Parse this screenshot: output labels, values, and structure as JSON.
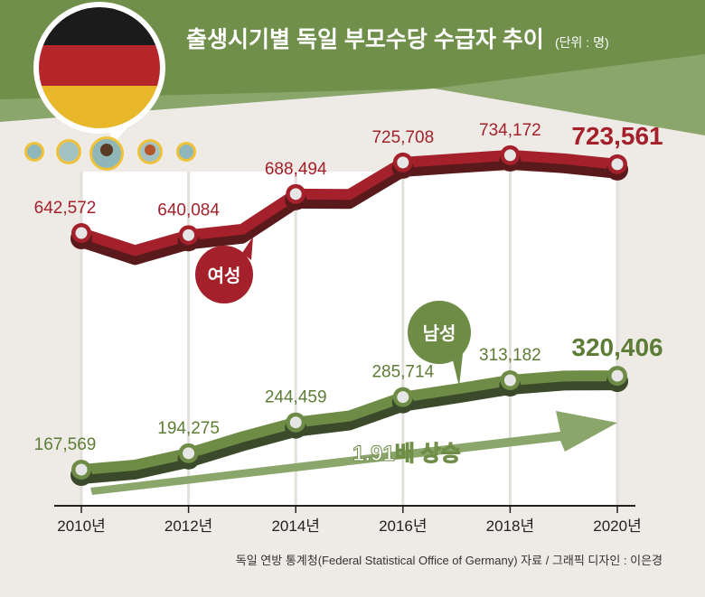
{
  "title": "출생시기별 독일 부모수당 수급자 추이",
  "unit": "(단위 : 명)",
  "source": "독일 연방 통계청(Federal Statistical Office of Germany) 자료 / 그래픽 디자인 : 이은경",
  "colors": {
    "female": "#a4202a",
    "female_shadow": "#5a1a1c",
    "male": "#6e8c45",
    "male_shadow": "#3b4a2a",
    "header": "#6f8f4a",
    "header_light": "#8aa66a",
    "background": "#eeebe6"
  },
  "chart_data": {
    "type": "line",
    "x": [
      2010,
      2011,
      2012,
      2013,
      2014,
      2015,
      2016,
      2017,
      2018,
      2019,
      2020
    ],
    "tick_labels": [
      "2010년",
      "2012년",
      "2014년",
      "2016년",
      "2018년",
      "2020년"
    ],
    "series": [
      {
        "name": "여성",
        "key": "female",
        "values": [
          642572,
          622000,
          640084,
          647000,
          688494,
          688000,
          725708,
          730000,
          734172,
          730000,
          723561
        ],
        "labels": [
          "642,572",
          null,
          "640,084",
          null,
          "688,494",
          null,
          "725,708",
          null,
          "734,172",
          null,
          "723,561"
        ]
      },
      {
        "name": "남성",
        "key": "male",
        "values": [
          167569,
          175000,
          194275,
          221000,
          244459,
          255000,
          285714,
          299000,
          313182,
          320000,
          320406
        ],
        "labels": [
          "167,569",
          null,
          "194,275",
          null,
          "244,459",
          null,
          "285,714",
          null,
          "313,182",
          null,
          "320,406"
        ]
      }
    ],
    "annotation": "1.91배 상승",
    "grid": "vertical"
  }
}
